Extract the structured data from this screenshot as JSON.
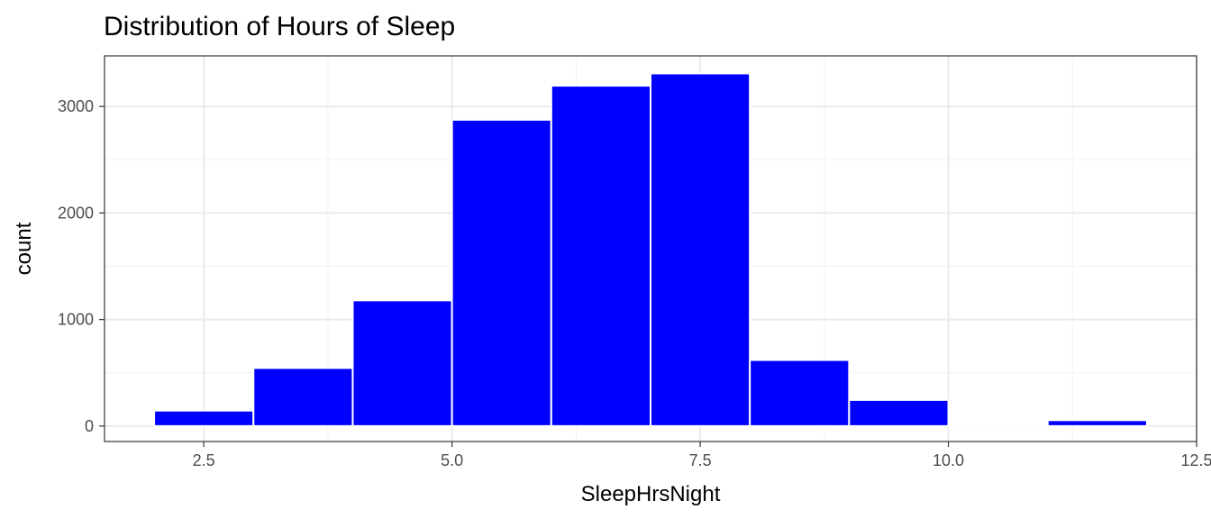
{
  "chart_data": {
    "type": "bar",
    "title": "Distribution of Hours of Sleep",
    "xlabel": "SleepHrsNight",
    "ylabel": "count",
    "bins": [
      {
        "x_start": 2,
        "x_end": 3,
        "count": 145
      },
      {
        "x_start": 3,
        "x_end": 4,
        "count": 545
      },
      {
        "x_start": 4,
        "x_end": 5,
        "count": 1180
      },
      {
        "x_start": 5,
        "x_end": 6,
        "count": 2875
      },
      {
        "x_start": 6,
        "x_end": 7,
        "count": 3195
      },
      {
        "x_start": 7,
        "x_end": 8,
        "count": 3310
      },
      {
        "x_start": 8,
        "x_end": 9,
        "count": 620
      },
      {
        "x_start": 9,
        "x_end": 10,
        "count": 245
      },
      {
        "x_start": 10,
        "x_end": 11,
        "count": 10
      },
      {
        "x_start": 11,
        "x_end": 12,
        "count": 55
      }
    ],
    "xlim": [
      1.5,
      12.5
    ],
    "ylim": [
      -145,
      3475
    ],
    "x_ticks": [
      {
        "value": 2.5,
        "label": "2.5"
      },
      {
        "value": 5.0,
        "label": "5.0"
      },
      {
        "value": 7.5,
        "label": "7.5"
      },
      {
        "value": 10.0,
        "label": "10.0"
      },
      {
        "value": 12.5,
        "label": "12.5"
      }
    ],
    "y_ticks": [
      {
        "value": 0,
        "label": "0"
      },
      {
        "value": 1000,
        "label": "1000"
      },
      {
        "value": 2000,
        "label": "2000"
      },
      {
        "value": 3000,
        "label": "3000"
      }
    ],
    "bar_color": "#0000ff",
    "grid": true,
    "theme": "bw"
  }
}
